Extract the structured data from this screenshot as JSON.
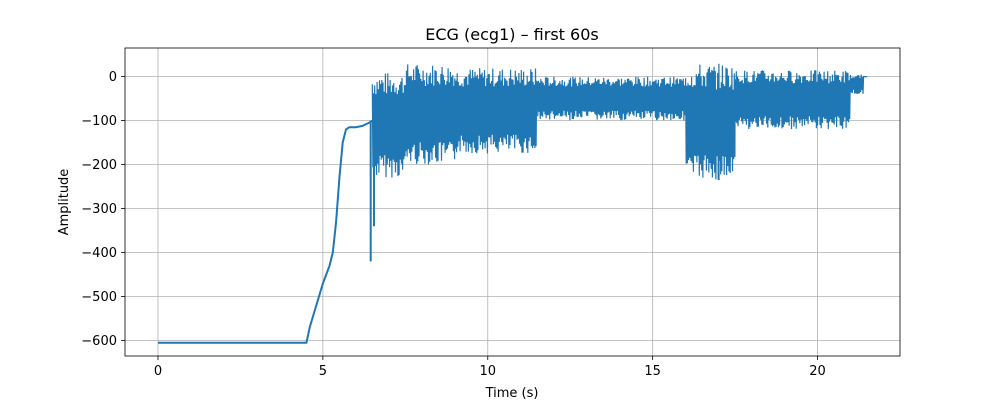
{
  "chart_data": {
    "type": "line",
    "title": "ECG (ecg1) – first 60s",
    "xlabel": "Time (s)",
    "ylabel": "Amplitude",
    "xlim": [
      -1.0,
      22.5
    ],
    "ylim": [
      -635,
      65
    ],
    "xticks": [
      0,
      5,
      10,
      15,
      20
    ],
    "yticks": [
      0,
      -100,
      -200,
      -300,
      -400,
      -500,
      -600
    ],
    "xtick_labels": [
      "0",
      "5",
      "10",
      "15",
      "20"
    ],
    "ytick_labels": [
      "0",
      "−100",
      "−200",
      "−300",
      "−400",
      "−500",
      "−600"
    ],
    "grid": true,
    "color": "#1f77b4",
    "series": [
      {
        "x": [
          0,
          4.5,
          4.6,
          4.8,
          5.0,
          5.2,
          5.3,
          5.4,
          5.5,
          5.6,
          5.7,
          5.8,
          6.0,
          6.2,
          6.4,
          6.5
        ],
        "y": [
          -605,
          -605,
          -570,
          -520,
          -470,
          -430,
          -400,
          -330,
          -230,
          -150,
          -120,
          -115,
          -115,
          -112,
          -105,
          -100
        ]
      }
    ],
    "noise_bands": [
      {
        "x": [
          6.5,
          7.5
        ],
        "low": -230,
        "high": 10
      },
      {
        "x": [
          7.5,
          9.0
        ],
        "low": -200,
        "high": 30
      },
      {
        "x": [
          9.0,
          11.5
        ],
        "low": -175,
        "high": 20
      },
      {
        "x": [
          11.5,
          16.0
        ],
        "low": -100,
        "high": 0
      },
      {
        "x": [
          16.0,
          17.5
        ],
        "low": -235,
        "high": 30
      },
      {
        "x": [
          17.5,
          21.0
        ],
        "low": -120,
        "high": 15
      },
      {
        "x": [
          21.0,
          21.4
        ],
        "low": -40,
        "high": 5
      }
    ],
    "spikes": [
      {
        "x": 6.55,
        "y": -340
      },
      {
        "x": 6.45,
        "y": -420
      },
      {
        "x": 17.0,
        "y": -235
      }
    ]
  }
}
